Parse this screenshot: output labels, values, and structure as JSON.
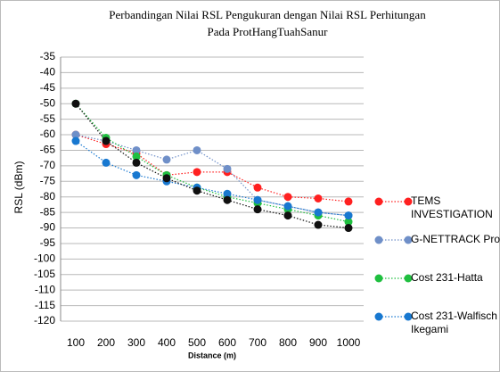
{
  "chart_data": {
    "type": "line",
    "title": [
      "Perbandingan Nilai RSL Pengukuran dengan Nilai RSL Perhitungan",
      "Pada ProtHangTuahSanur"
    ],
    "x_label": "Distance (m)",
    "y_label": "RSL (dBm)",
    "categories": [
      "100",
      "200",
      "300",
      "400",
      "500",
      "600",
      "700",
      "800",
      "900",
      "1000"
    ],
    "ylim": [
      -120,
      -35
    ],
    "yticks": [
      -120,
      -115,
      -110,
      -105,
      -100,
      -95,
      -90,
      -85,
      -80,
      -75,
      -70,
      -65,
      -60,
      -55,
      -50,
      -45,
      -40,
      -35
    ],
    "grid": true,
    "legend": "right",
    "series": [
      {
        "name": "TEMS INVESTIGATION",
        "color": "#ff2020",
        "values": [
          -60,
          -63,
          -66,
          -73,
          -72,
          -72,
          -77,
          -80,
          -80.5,
          -81.5
        ]
      },
      {
        "name": "G-NETTRACK Pro",
        "color": "#6f8fc8",
        "values": [
          -60,
          -62,
          -65,
          -68,
          -65,
          -71,
          -81,
          -83,
          -85,
          -86
        ]
      },
      {
        "name": "Cost 231-Hatta",
        "color": "#1fbf3f",
        "values": [
          -50,
          -61,
          -67,
          -73,
          -77,
          -80,
          -82,
          -84,
          -86,
          -88
        ]
      },
      {
        "name": "Cost 231-Walfisch Ikegami",
        "color": "#1878d0",
        "values": [
          -62,
          -69,
          -73,
          -75,
          -77,
          -79,
          -81,
          -83,
          -85,
          -86
        ]
      },
      {
        "color": "#101010",
        "values": [
          -50,
          -62,
          -69,
          -74,
          -78,
          -81,
          -84,
          -86,
          -89,
          -90
        ]
      }
    ]
  }
}
